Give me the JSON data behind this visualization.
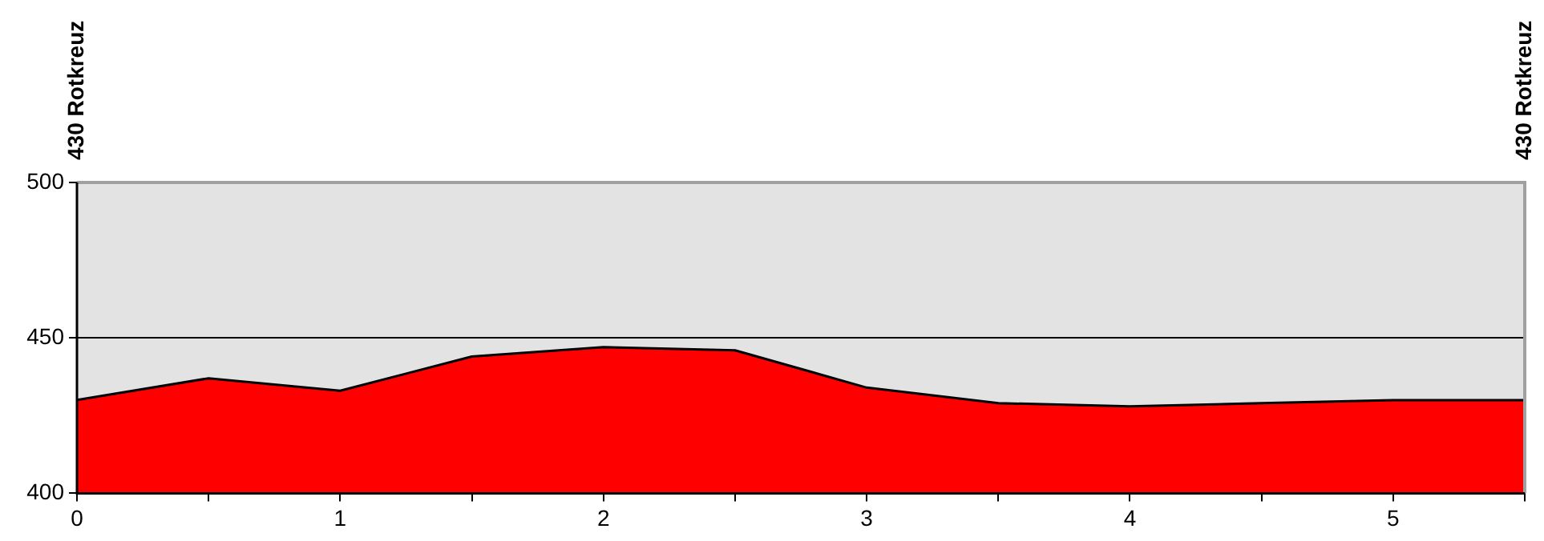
{
  "chart_data": {
    "type": "area",
    "x": [
      0,
      0.5,
      1,
      1.5,
      2,
      2.5,
      3,
      3.5,
      4,
      4.5,
      5,
      5.5
    ],
    "series": [
      {
        "color": "#ff0000",
        "values": [
          430,
          437,
          433,
          444,
          447,
          446,
          434,
          429,
          428,
          429,
          430,
          430
        ]
      }
    ],
    "xlim": [
      0,
      5.5
    ],
    "xticks": [
      0,
      {
        "value": 0.5,
        "label": null
      },
      1,
      {
        "value": 1.5,
        "label": null
      },
      2,
      {
        "value": 2.5,
        "label": null
      },
      3,
      {
        "value": 3.5,
        "label": null
      },
      4,
      {
        "value": 4.5,
        "label": null
      },
      5,
      {
        "value": 5.5,
        "label": null
      }
    ],
    "ylim": [
      400,
      500
    ],
    "yticks": [
      400,
      450,
      500
    ],
    "grid": "y",
    "marker": "none",
    "line_style": "solid",
    "annotations": [
      "430 Rotkreuz",
      "430 Rotkreuz"
    ]
  }
}
